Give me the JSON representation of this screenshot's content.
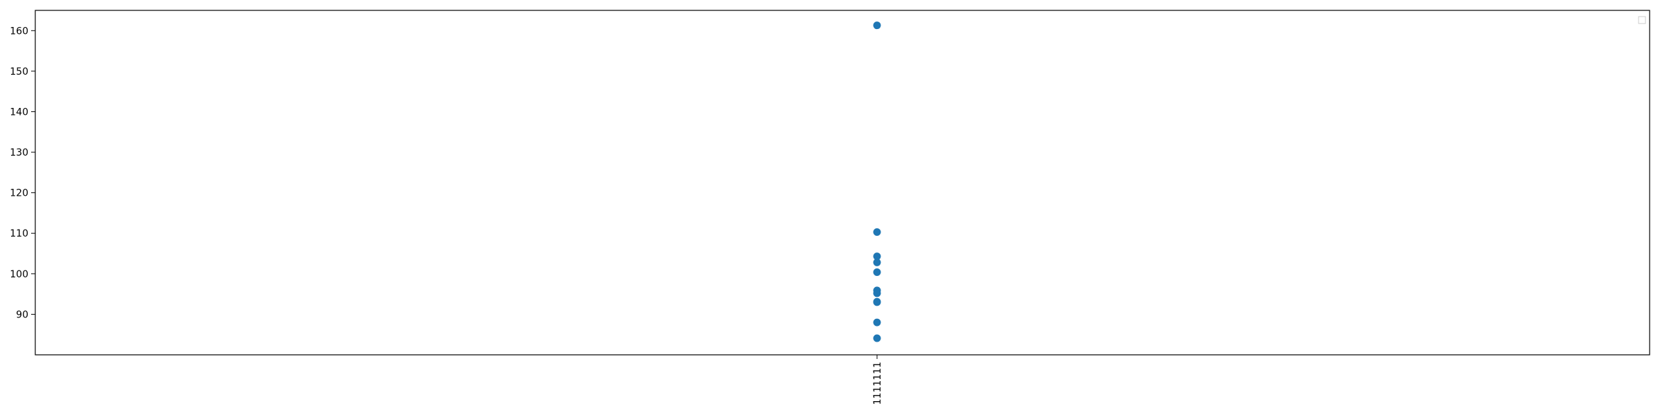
{
  "chart_data": {
    "type": "scatter",
    "title": "",
    "xlabel": "",
    "ylabel": "",
    "categories": [
      "1111111"
    ],
    "yticks": [
      90,
      100,
      110,
      120,
      130,
      140,
      150,
      160
    ],
    "ylim": [
      80,
      165
    ],
    "grid": false,
    "legend": {
      "placement": "top-right",
      "entries": []
    },
    "colors": {
      "marker": "#1f77b4",
      "axes": "#000000",
      "background": "#ffffff"
    },
    "series": [
      {
        "x": [
          "1111111",
          "1111111",
          "1111111",
          "1111111",
          "1111111",
          "1111111",
          "1111111",
          "1111111",
          "1111111",
          "1111111",
          "1111111"
        ],
        "y": [
          161.3,
          110.3,
          104.3,
          102.8,
          100.4,
          95.9,
          95.2,
          93.1,
          88.0,
          84.1,
          93.0
        ]
      }
    ]
  }
}
